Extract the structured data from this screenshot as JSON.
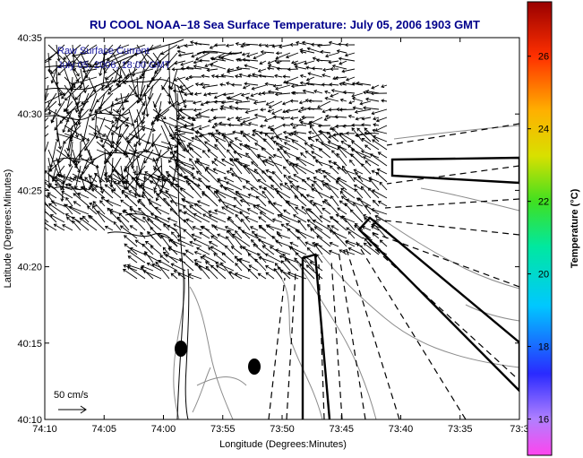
{
  "title": "RU COOL  NOAA–18  Sea Surface Temperature:  July 05, 2006 1903 GMT",
  "overlay": {
    "line1": "Raw Surface Current",
    "line2": "July 05, 2006, 18:00 GMT"
  },
  "axes": {
    "xlabel": "Longitude (Degrees:Minutes)",
    "ylabel": "Latitude (Degrees:Minutes)",
    "x_ticks": [
      "74:10",
      "74:05",
      "74:00",
      "73:55",
      "73:50",
      "73:45",
      "73:40",
      "73:35",
      "73:3"
    ],
    "y_ticks": [
      "40:35",
      "40:30",
      "40:25",
      "40:20",
      "40:15",
      "40:10"
    ]
  },
  "scale_bar": {
    "label": "50 cm/s"
  },
  "colorbar": {
    "label": "Temperature (°C)",
    "ticks": [
      "26",
      "24",
      "22",
      "20",
      "18",
      "16"
    ],
    "min": 15,
    "max": 27.5
  },
  "map": {
    "lon_range": [
      "74:10",
      "73:30"
    ],
    "lat_range": [
      "40:10",
      "40:35"
    ],
    "grid": false,
    "colors": {
      "frame": "#000000",
      "title": "#00008b",
      "overlay_text": "#1a1aa0",
      "contours": "#8c8c8c"
    }
  }
}
